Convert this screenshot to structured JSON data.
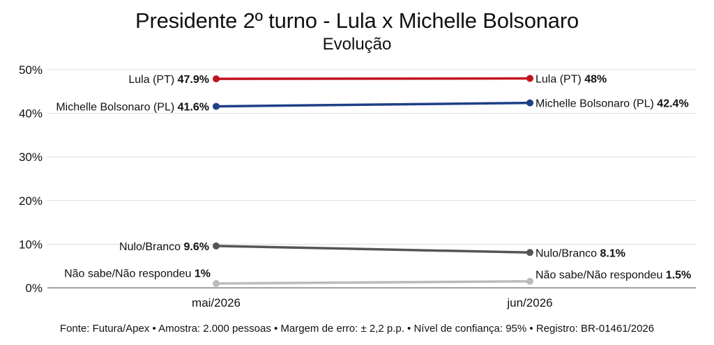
{
  "title": "Presidente 2º turno - Lula x Michelle Bolsonaro",
  "subtitle": "Evolução",
  "footer": "Fonte: Futura/Apex • Amostra: 2.000 pessoas • Margem de erro: ± 2,2 p.p. • Nível de confiança: 95% • Registro: BR-01461/2026",
  "chart_data": {
    "type": "line",
    "title": "Presidente 2º turno - Lula x Michelle Bolsonaro",
    "subtitle": "Evolução",
    "categories": [
      "mai/2026",
      "jun/2026"
    ],
    "y_ticks": [
      "0%",
      "10%",
      "20%",
      "30%",
      "40%",
      "50%"
    ],
    "ylim": [
      0,
      50
    ],
    "grid": true,
    "series": [
      {
        "name": "Lula (PT)",
        "color": "#c1121f",
        "values": [
          47.9,
          48
        ],
        "labels": [
          "47.9%",
          "48%"
        ]
      },
      {
        "name": "Michelle Bolsonaro (PL)",
        "color": "#1f3f86",
        "values": [
          41.6,
          42.4
        ],
        "labels": [
          "41.6%",
          "42.4%"
        ]
      },
      {
        "name": "Nulo/Branco",
        "color": "#555555",
        "values": [
          9.6,
          8.1
        ],
        "labels": [
          "9.6%",
          "8.1%"
        ]
      },
      {
        "name": "Não sabe/Não respondeu",
        "color": "#bbbbbb",
        "values": [
          1,
          1.5
        ],
        "labels": [
          "1%",
          "1.5%"
        ]
      }
    ]
  }
}
